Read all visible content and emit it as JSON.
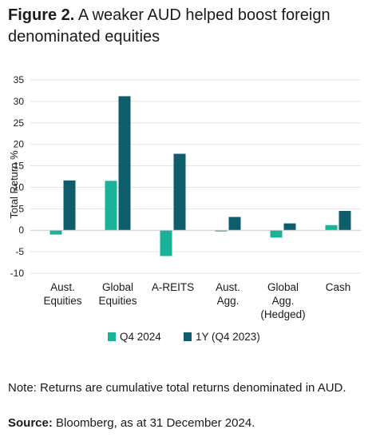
{
  "title": {
    "prefix": "Figure 2.",
    "text": "A weaker AUD helped boost foreign denominated equities"
  },
  "note": "Note: Returns are cumulative total returns denominated in AUD.",
  "source": {
    "label": "Source:",
    "text": "Bloomberg, as at 31 December 2024."
  },
  "colors": {
    "q4": "#1ab39a",
    "oneyear": "#0f5c6b",
    "grid": "#e4e4e4",
    "text": "#1a1a1a"
  },
  "chart_data": {
    "type": "bar",
    "ylabel": "Total Return %",
    "ylim": [
      -10,
      35
    ],
    "yticks": [
      35,
      30,
      25,
      20,
      15,
      10,
      5,
      0,
      -5,
      -10
    ],
    "grid": true,
    "legend": "bottom",
    "categories": [
      [
        "Aust.",
        "Equities"
      ],
      [
        "Global",
        "Equities"
      ],
      [
        "A-REITS"
      ],
      [
        "Aust.",
        "Agg."
      ],
      [
        "Global",
        "Agg.",
        "(Hedged)"
      ],
      [
        "Cash"
      ]
    ],
    "series": [
      {
        "name": "Q4 2024",
        "values": [
          -1.0,
          11.5,
          -6.0,
          -0.2,
          -1.7,
          1.2
        ]
      },
      {
        "name": "1Y (Q4 2023)",
        "values": [
          11.6,
          31.2,
          17.8,
          3.1,
          1.6,
          4.5
        ]
      }
    ]
  }
}
